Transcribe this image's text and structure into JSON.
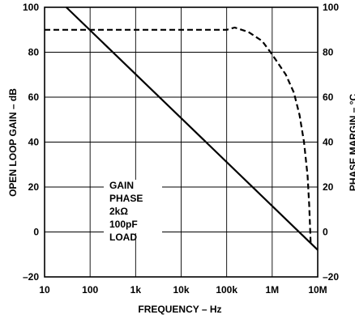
{
  "chart_data": {
    "type": "line",
    "xlabel": "FREQUENCY – Hz",
    "ylabel_left": "OPEN LOOP GAIN – dB",
    "ylabel_right": "PHASE MARGIN – °C",
    "x_scale": "log",
    "xlim": [
      10,
      10000000
    ],
    "ylim_left": [
      -20,
      100
    ],
    "ylim_right": [
      -20,
      100
    ],
    "grid": true,
    "x_ticks": [
      {
        "value": 10,
        "label": "10"
      },
      {
        "value": 100,
        "label": "100"
      },
      {
        "value": 1000,
        "label": "1k"
      },
      {
        "value": 10000,
        "label": "10k"
      },
      {
        "value": 100000,
        "label": "100k"
      },
      {
        "value": 1000000,
        "label": "1M"
      },
      {
        "value": 10000000,
        "label": "10M"
      }
    ],
    "y_ticks_left": [
      {
        "value": 100,
        "label": "100"
      },
      {
        "value": 80,
        "label": "80"
      },
      {
        "value": 60,
        "label": "60"
      },
      {
        "value": 40,
        "label": "40"
      },
      {
        "value": 20,
        "label": "20"
      },
      {
        "value": 0,
        "label": "0"
      },
      {
        "value": -20,
        "label": "–20"
      }
    ],
    "y_ticks_right": [
      {
        "value": 100,
        "label": "100"
      },
      {
        "value": 80,
        "label": "80"
      },
      {
        "value": 60,
        "label": "60"
      },
      {
        "value": 40,
        "label": "40"
      },
      {
        "value": 20,
        "label": "20"
      },
      {
        "value": 0,
        "label": "0"
      },
      {
        "value": -20,
        "label": "–20"
      }
    ],
    "series": [
      {
        "style": "solid",
        "axis": "left",
        "x": [
          30,
          10000000
        ],
        "y": [
          100,
          -8
        ]
      },
      {
        "style": "dashed",
        "axis": "right",
        "x": [
          10,
          100000,
          150000,
          300000,
          600000,
          1000000,
          2000000,
          3000000,
          4000000,
          5000000,
          6000000,
          6500000,
          7000000
        ],
        "y": [
          90,
          90,
          91,
          89,
          85,
          79,
          70,
          62,
          52,
          40,
          25,
          12,
          -5
        ]
      }
    ],
    "annotation": [
      "GAIN",
      "PHASE",
      "2kΩ",
      "100pF",
      "LOAD"
    ]
  }
}
